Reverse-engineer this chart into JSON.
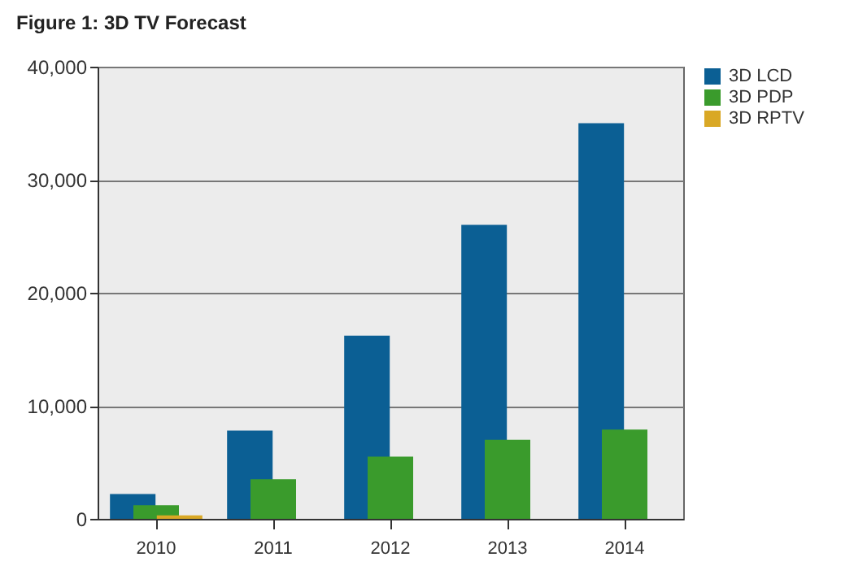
{
  "chart_data": {
    "type": "bar",
    "title": "Figure 1:  3D TV Forecast",
    "categories": [
      "2010",
      "2011",
      "2012",
      "2013",
      "2014"
    ],
    "series": [
      {
        "name": "3D LCD",
        "color": "#0b5f94",
        "values": [
          2200,
          7800,
          16200,
          26000,
          35000
        ]
      },
      {
        "name": "3D PDP",
        "color": "#3a9b2c",
        "values": [
          1200,
          3500,
          5500,
          7000,
          7900
        ]
      },
      {
        "name": "3D RPTV",
        "color": "#d9a825",
        "values": [
          300,
          0,
          0,
          0,
          0
        ]
      }
    ],
    "ylim": [
      0,
      40000
    ],
    "yticks": [
      0,
      {
        "value": 10000,
        "label": "10,000"
      },
      {
        "value": 20000,
        "label": "20,000"
      },
      {
        "value": 30000,
        "label": "30,000"
      },
      {
        "value": 40000,
        "label": "40,000"
      }
    ],
    "grid": "y",
    "legend": "right"
  }
}
